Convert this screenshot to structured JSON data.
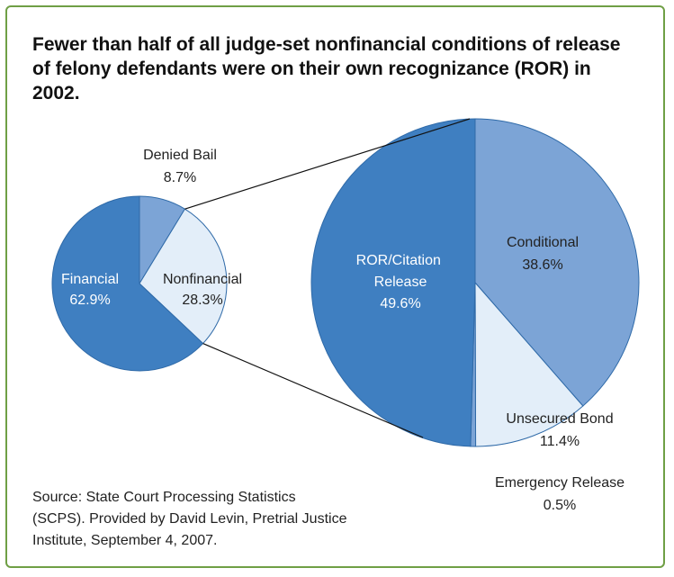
{
  "title": "Fewer than half of all judge-set nonfinancial conditions of release of felony defendants were on their own recognizance (ROR) in 2002.",
  "source": "Source: State Court Processing Statistics (SCPS). Provided by David Levin, Pretrial Justice Institute, September 4, 2007.",
  "chart_data": [
    {
      "type": "pie",
      "categories": [
        "Denied Bail",
        "Nonfinancial",
        "Financial"
      ],
      "values": [
        8.7,
        28.3,
        62.9
      ],
      "value_labels": [
        "8.7%",
        "28.3%",
        "62.9%"
      ],
      "colors": [
        "#7ca4d6",
        "#e3eef9",
        "#3f7fc1"
      ]
    },
    {
      "type": "pie",
      "categories": [
        "Conditional",
        "Unsecured Bond",
        "Emergency Release",
        "ROR/Citation Release"
      ],
      "values": [
        38.6,
        11.4,
        0.5,
        49.6
      ],
      "value_labels": [
        "38.6%",
        "11.4%",
        "0.5%",
        "49.6%"
      ],
      "colors": [
        "#7ca4d6",
        "#e3eef9",
        "#7ca4d6",
        "#3f7fc1"
      ]
    }
  ]
}
